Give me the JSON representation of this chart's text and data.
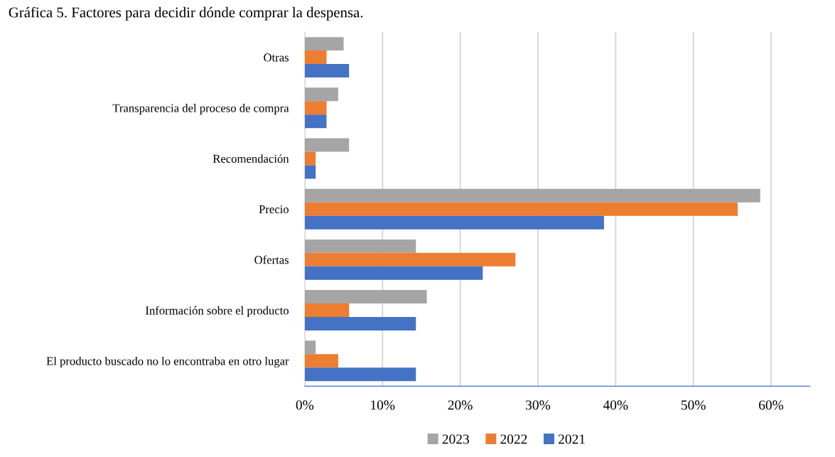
{
  "chart_data": {
    "type": "bar",
    "orientation": "horizontal",
    "title": "Gráfica 5. Factores para decidir dónde comprar la despensa.",
    "categories": [
      "Otras",
      "Transparencia del proceso de compra",
      "Recomendación",
      "Precio",
      "Ofertas",
      "Información sobre el producto",
      "El producto buscado no lo encontraba en otro lugar"
    ],
    "series": [
      {
        "name": "2023",
        "color": "#a5a5a5",
        "values": [
          5.0,
          4.3,
          5.7,
          58.6,
          14.3,
          15.7,
          1.4
        ]
      },
      {
        "name": "2022",
        "color": "#ed7d31",
        "values": [
          2.8,
          2.8,
          1.4,
          55.7,
          27.1,
          5.7,
          4.3
        ]
      },
      {
        "name": "2021",
        "color": "#4472c4",
        "values": [
          5.7,
          2.8,
          1.4,
          38.5,
          22.9,
          14.3,
          14.3
        ]
      }
    ],
    "xlim": [
      0,
      65
    ],
    "xticks": [
      {
        "value": 0,
        "label": "0%"
      },
      {
        "value": 10,
        "label": "10%"
      },
      {
        "value": 20,
        "label": "20%"
      },
      {
        "value": 30,
        "label": "30%"
      },
      {
        "value": 40,
        "label": "40%"
      },
      {
        "value": 50,
        "label": "50%"
      },
      {
        "value": 60,
        "label": "60%"
      }
    ],
    "grid": "x",
    "legend": "bottom"
  }
}
